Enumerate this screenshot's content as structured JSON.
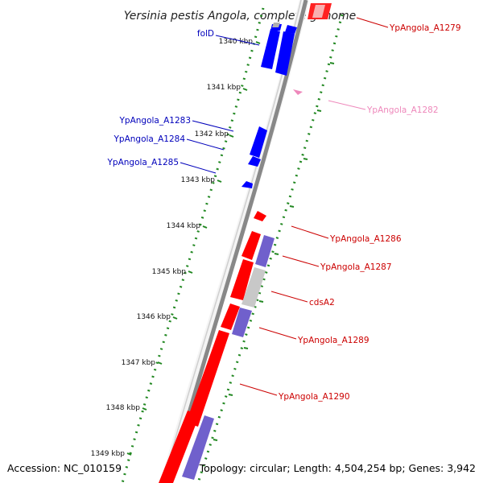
{
  "title": "Yersinia pestis Angola, complete genome",
  "footer": {
    "accession": "Accession: NC_010159",
    "topology": "Topology: circular; Length: 4,504,254 bp; Genes: 3,942"
  },
  "colors": {
    "forward_gene": "#ff0000",
    "reverse_gene": "#0000ff",
    "forward_label": "#cc0000",
    "reverse_label": "#0000bb",
    "pseudo_label": "#ee88bb",
    "cds_gray": "#c8c8c8",
    "purple_gene": "#7060cc",
    "tick_green": "#228822",
    "backbone": "#888888"
  },
  "ticks": [
    "1340 kbp",
    "1341 kbp",
    "1342 kbp",
    "1343 kbp",
    "1344 kbp",
    "1345 kbp",
    "1346 kbp",
    "1347 kbp",
    "1348 kbp",
    "1349 kbp"
  ],
  "left_labels": [
    "folD",
    "YpAngola_A1283",
    "YpAngola_A1284",
    "YpAngola_A1285"
  ],
  "right_labels": [
    "YpAngola_A1279",
    "YpAngola_A1282",
    "YpAngola_A1286",
    "YpAngola_A1287",
    "cdsA2",
    "YpAngola_A1289",
    "YpAngola_A1290"
  ]
}
